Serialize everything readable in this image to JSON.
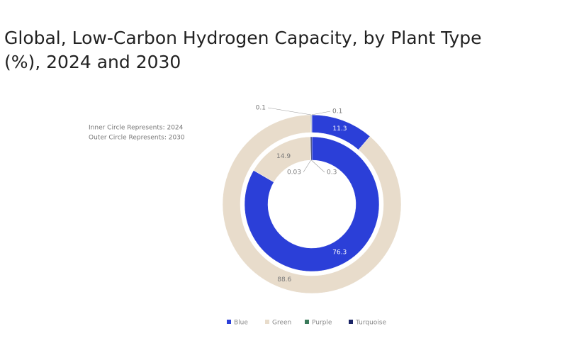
{
  "chart_data": {
    "type": "donut",
    "title": [
      "Global, Low-Carbon Hydrogen Capacity, by Plant Type",
      "(%), 2024 and 2030"
    ],
    "annotations": [
      "Inner Circle Represents: 2024",
      "Outer Circle Represents: 2030"
    ],
    "categories": [
      "Blue",
      "Green",
      "Purple",
      "Turquoise"
    ],
    "colors": [
      "#2b3fd8",
      "#e8dccb",
      "#3a7a5a",
      "#1a2466"
    ],
    "series": [
      {
        "values": [
          76.3,
          14.9,
          0.03,
          0.3
        ]
      },
      {
        "values": [
          11.3,
          88.6,
          0.1,
          0.1
        ]
      }
    ]
  }
}
